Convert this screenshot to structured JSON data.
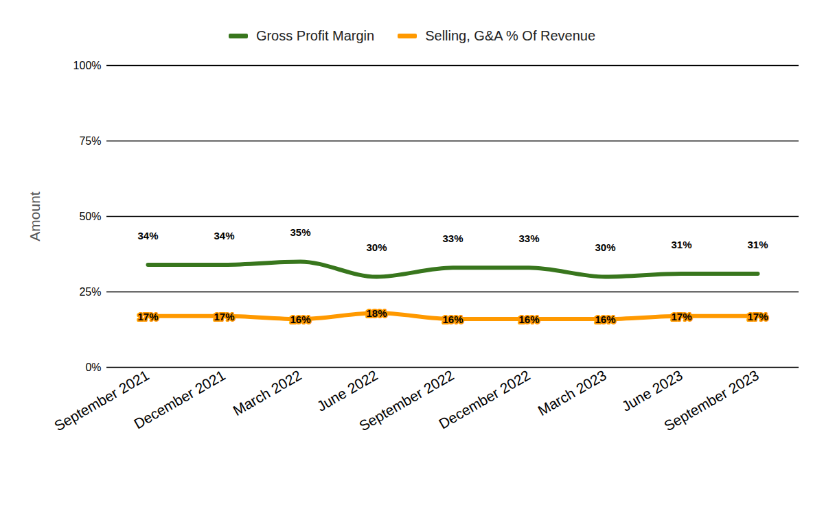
{
  "chart_data": {
    "type": "line",
    "ylabel": "Amount",
    "categories": [
      "September 2021",
      "December 2021",
      "March 2022",
      "June 2022",
      "September 2022",
      "December 2022",
      "March 2023",
      "June 2023",
      "September 2023"
    ],
    "series": [
      {
        "name": "Gross Profit Margin",
        "color": "#38761d",
        "values": [
          34,
          34,
          35,
          30,
          33,
          33,
          30,
          31,
          31
        ],
        "value_labels": [
          "34%",
          "34%",
          "35%",
          "30%",
          "33%",
          "33%",
          "30%",
          "31%",
          "31%"
        ]
      },
      {
        "name": "Selling, G&A % Of Revenue",
        "color": "#ff9900",
        "values": [
          17,
          17,
          16,
          18,
          16,
          16,
          16,
          17,
          17
        ],
        "value_labels": [
          "17%",
          "17%",
          "16%",
          "18%",
          "16%",
          "16%",
          "16%",
          "17%",
          "17%"
        ]
      }
    ],
    "ylim": [
      0,
      100
    ],
    "yticks": [
      {
        "value": 0,
        "label": "0%"
      },
      {
        "value": 25,
        "label": "25%"
      },
      {
        "value": 50,
        "label": "50%"
      },
      {
        "value": 75,
        "label": "75%"
      },
      {
        "value": 100,
        "label": "100%"
      }
    ],
    "grid": true,
    "legend": "top",
    "data_labels": true
  }
}
